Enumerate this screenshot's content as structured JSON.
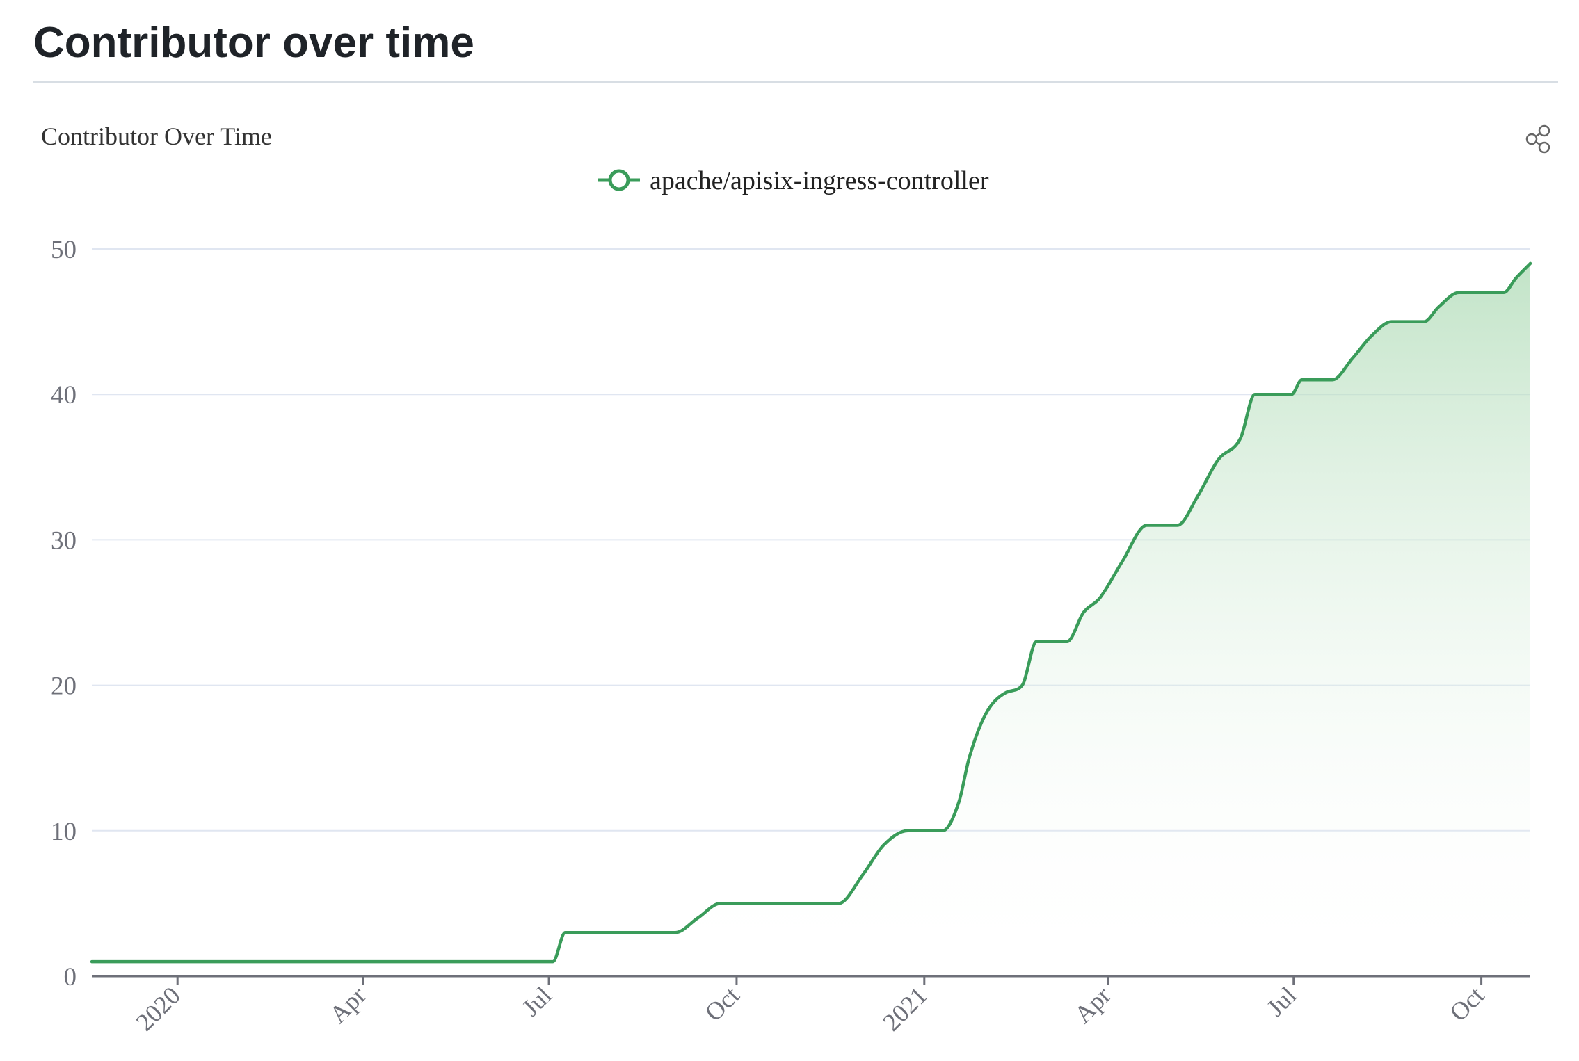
{
  "page": {
    "heading": "Contributor over time"
  },
  "toolbar": {
    "share_icon": "share-icon"
  },
  "colors": {
    "line": "#3a9c5a",
    "area_top": "#a8d8b0",
    "grid": "#e0e6f1",
    "axis": "#6e7079"
  },
  "chart_data": {
    "type": "area",
    "title": "Contributor Over Time",
    "xlabel": "",
    "ylabel": "",
    "ylim": [
      0,
      50
    ],
    "yticks": [
      0,
      10,
      20,
      30,
      40,
      50
    ],
    "xlim": [
      "2019-11-20",
      "2021-10-25"
    ],
    "xticks": [
      {
        "date": "2020-01-01",
        "label": "2020"
      },
      {
        "date": "2020-04-01",
        "label": "Apr"
      },
      {
        "date": "2020-07-01",
        "label": "Jul"
      },
      {
        "date": "2020-10-01",
        "label": "Oct"
      },
      {
        "date": "2021-01-01",
        "label": "2021"
      },
      {
        "date": "2021-04-01",
        "label": "Apr"
      },
      {
        "date": "2021-07-01",
        "label": "Jul"
      },
      {
        "date": "2021-10-01",
        "label": "Oct"
      }
    ],
    "grid": true,
    "legend_position": "top-center",
    "series": [
      {
        "name": "apache/apisix-ingress-controller",
        "color": "#3a9c5a",
        "points": [
          {
            "x": "2019-11-20",
            "y": 1
          },
          {
            "x": "2020-07-03",
            "y": 1
          },
          {
            "x": "2020-07-09",
            "y": 3
          },
          {
            "x": "2020-09-01",
            "y": 3
          },
          {
            "x": "2020-09-12",
            "y": 4
          },
          {
            "x": "2020-09-23",
            "y": 5
          },
          {
            "x": "2020-11-20",
            "y": 5
          },
          {
            "x": "2020-12-02",
            "y": 7
          },
          {
            "x": "2020-12-12",
            "y": 9
          },
          {
            "x": "2020-12-24",
            "y": 10
          },
          {
            "x": "2021-01-10",
            "y": 10
          },
          {
            "x": "2021-01-18",
            "y": 12
          },
          {
            "x": "2021-01-23",
            "y": 15
          },
          {
            "x": "2021-01-31",
            "y": 18
          },
          {
            "x": "2021-02-10",
            "y": 19.5
          },
          {
            "x": "2021-02-18",
            "y": 20
          },
          {
            "x": "2021-02-25",
            "y": 23
          },
          {
            "x": "2021-03-12",
            "y": 23
          },
          {
            "x": "2021-03-20",
            "y": 25
          },
          {
            "x": "2021-03-28",
            "y": 26
          },
          {
            "x": "2021-04-08",
            "y": 28.5
          },
          {
            "x": "2021-04-20",
            "y": 31
          },
          {
            "x": "2021-05-05",
            "y": 31
          },
          {
            "x": "2021-05-15",
            "y": 33
          },
          {
            "x": "2021-05-25",
            "y": 35.5
          },
          {
            "x": "2021-06-05",
            "y": 37
          },
          {
            "x": "2021-06-12",
            "y": 40
          },
          {
            "x": "2021-06-30",
            "y": 40
          },
          {
            "x": "2021-07-05",
            "y": 41
          },
          {
            "x": "2021-07-20",
            "y": 41
          },
          {
            "x": "2021-07-30",
            "y": 42.5
          },
          {
            "x": "2021-08-08",
            "y": 44
          },
          {
            "x": "2021-08-18",
            "y": 45
          },
          {
            "x": "2021-09-03",
            "y": 45
          },
          {
            "x": "2021-09-10",
            "y": 46
          },
          {
            "x": "2021-09-20",
            "y": 47
          },
          {
            "x": "2021-10-12",
            "y": 47
          },
          {
            "x": "2021-10-18",
            "y": 48
          },
          {
            "x": "2021-10-25",
            "y": 49
          }
        ]
      }
    ]
  }
}
